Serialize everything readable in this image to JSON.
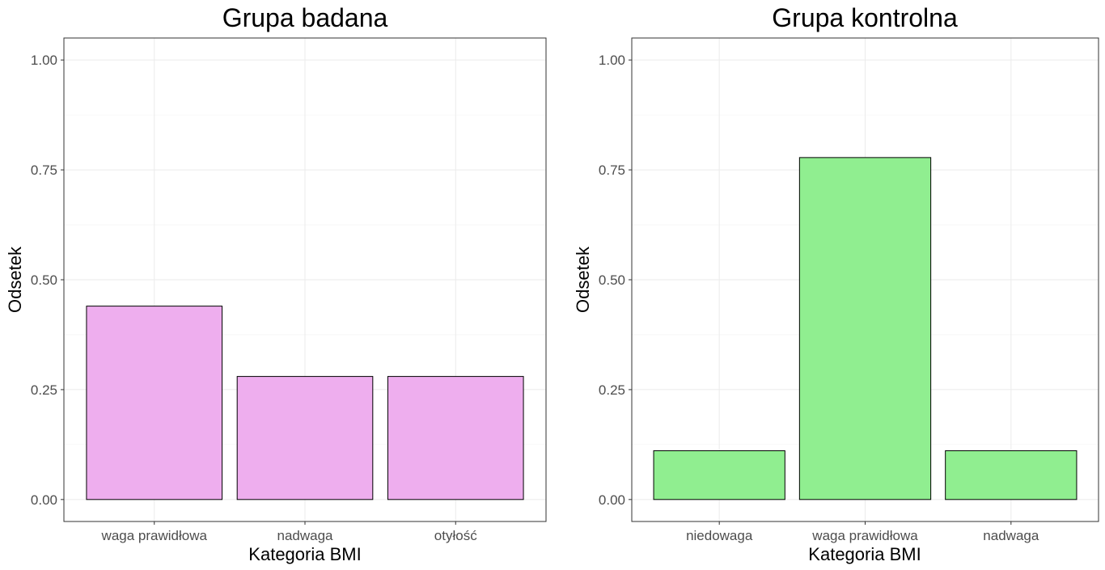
{
  "chart_data": [
    {
      "type": "bar",
      "title": "Grupa badana",
      "xlabel": "Kategoria BMI",
      "ylabel": "Odsetek",
      "categories": [
        "waga prawidłowa",
        "nadwaga",
        "otyłość"
      ],
      "values": [
        0.44,
        0.28,
        0.28
      ],
      "ylim": [
        -0.05,
        1.05
      ],
      "yticks": [
        0,
        0.25,
        0.5,
        0.75,
        1
      ],
      "ytick_labels": [
        "0.00",
        "0.25",
        "0.50",
        "0.75",
        "1.00"
      ],
      "bar_color": "#EEAEEE",
      "grid": true
    },
    {
      "type": "bar",
      "title": "Grupa kontrolna",
      "xlabel": "Kategoria BMI",
      "ylabel": "Odsetek",
      "categories": [
        "niedowaga",
        "waga prawidłowa",
        "nadwaga"
      ],
      "values": [
        0.111,
        0.778,
        0.111
      ],
      "ylim": [
        -0.05,
        1.05
      ],
      "yticks": [
        0,
        0.25,
        0.5,
        0.75,
        1
      ],
      "ytick_labels": [
        "0.00",
        "0.25",
        "0.50",
        "0.75",
        "1.00"
      ],
      "bar_color": "#90EE90",
      "grid": true
    }
  ]
}
